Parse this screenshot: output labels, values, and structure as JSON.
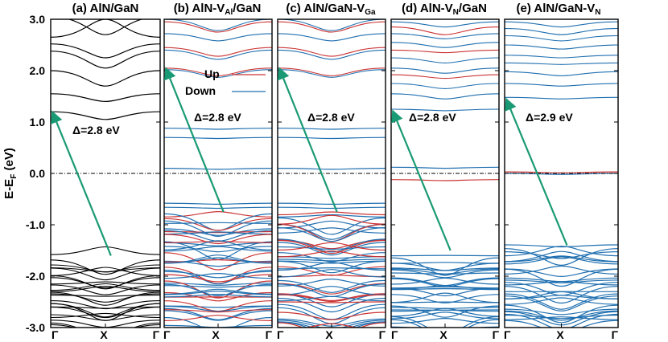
{
  "chart_data": {
    "type": "line",
    "ylabel": "E-E",
    "ylabel_sub": "F",
    "ylabel_tail": " (eV)",
    "ylim": [
      -3.0,
      3.0
    ],
    "yticks": [
      "3.0",
      "2.0",
      "1.0",
      "0.0",
      "-1.0",
      "-2.0",
      "-3.0"
    ],
    "ytick_values": [
      3,
      2,
      1,
      0,
      -1,
      -2,
      -3
    ],
    "xticks": [
      "Γ",
      "X",
      "Γ"
    ],
    "fermi_level": 0.0,
    "legend": {
      "up": "Up",
      "down": "Down",
      "position": "top-left of panel b"
    },
    "colors": {
      "up": "#cc3333",
      "down": "#1f6fb0",
      "pristine": "#000000",
      "arrow": "#1a9a74"
    },
    "panels": [
      {
        "id": "a",
        "title": {
          "pre": "(a) AlN/GaN",
          "sub": "",
          "post": ""
        },
        "gap_label": "Δ=2.8 eV",
        "arrow": {
          "from": [
            0.55,
            -1.6
          ],
          "to": [
            0.0,
            1.2
          ]
        },
        "conduction_bands": [
          {
            "gamma": 3.05,
            "x": 2.7,
            "spin": "pristine"
          },
          {
            "gamma": 2.65,
            "x": 3.0,
            "spin": "pristine"
          },
          {
            "gamma": 2.52,
            "x": 2.25,
            "spin": "pristine"
          },
          {
            "gamma": 2.38,
            "x": 2.05,
            "spin": "pristine"
          },
          {
            "gamma": 2.0,
            "x": 1.7,
            "spin": "pristine"
          },
          {
            "gamma": 1.55,
            "x": 1.4,
            "spin": "pristine"
          },
          {
            "gamma": 1.2,
            "x": 1.05,
            "spin": "pristine"
          }
        ],
        "defect_levels": [],
        "valence": {
          "top": -1.65,
          "bottom": -3.0,
          "count": 26,
          "spin": "pristine"
        }
      },
      {
        "id": "b",
        "title": {
          "pre": "(b) AlN-V",
          "sub": "Al",
          "post": "/GaN"
        },
        "gap_label": "Δ=2.8 eV",
        "arrow": {
          "from": [
            0.55,
            -0.75
          ],
          "to": [
            0.0,
            2.05
          ]
        },
        "conduction_bands": [
          {
            "gamma": 3.0,
            "x": 2.78,
            "spin": "down"
          },
          {
            "gamma": 2.95,
            "x": 2.75,
            "spin": "up"
          },
          {
            "gamma": 2.72,
            "x": 2.58,
            "spin": "down"
          },
          {
            "gamma": 2.45,
            "x": 2.28,
            "spin": "up"
          },
          {
            "gamma": 2.4,
            "x": 2.22,
            "spin": "down"
          },
          {
            "gamma": 2.05,
            "x": 1.9,
            "spin": "up"
          },
          {
            "gamma": 2.02,
            "x": 1.87,
            "spin": "down"
          }
        ],
        "defect_levels": [
          {
            "energy": 0.88,
            "spin": "down"
          },
          {
            "energy": 0.7,
            "spin": "down"
          },
          {
            "energy": 0.1,
            "spin": "down"
          },
          {
            "energy": -0.58,
            "spin": "down"
          },
          {
            "energy": -0.66,
            "spin": "down"
          }
        ],
        "valence": {
          "top": -0.78,
          "bottom": -3.0,
          "count": 46,
          "spin": "mixed"
        }
      },
      {
        "id": "c",
        "title": {
          "pre": "(c) AlN/GaN-V",
          "sub": "Ga",
          "post": ""
        },
        "gap_label": "Δ=2.8 eV",
        "arrow": {
          "from": [
            0.55,
            -0.75
          ],
          "to": [
            0.0,
            2.05
          ]
        },
        "conduction_bands": [
          {
            "gamma": 3.0,
            "x": 2.78,
            "spin": "down"
          },
          {
            "gamma": 2.95,
            "x": 2.75,
            "spin": "up"
          },
          {
            "gamma": 2.72,
            "x": 2.58,
            "spin": "down"
          },
          {
            "gamma": 2.45,
            "x": 2.28,
            "spin": "up"
          },
          {
            "gamma": 2.4,
            "x": 2.22,
            "spin": "down"
          },
          {
            "gamma": 2.05,
            "x": 1.9,
            "spin": "up"
          },
          {
            "gamma": 2.02,
            "x": 1.87,
            "spin": "down"
          }
        ],
        "defect_levels": [
          {
            "energy": 0.88,
            "spin": "down"
          },
          {
            "energy": 0.7,
            "spin": "down"
          },
          {
            "energy": 0.1,
            "spin": "down"
          },
          {
            "energy": -0.58,
            "spin": "down"
          },
          {
            "energy": -0.66,
            "spin": "down"
          }
        ],
        "valence": {
          "top": -0.78,
          "bottom": -3.0,
          "count": 46,
          "spin": "mixed"
        }
      },
      {
        "id": "d",
        "title": {
          "pre": "(d) AlN-V",
          "sub": "N",
          "post": "/GaN"
        },
        "gap_label": "Δ=2.8 eV",
        "arrow": {
          "from": [
            0.55,
            -1.5
          ],
          "to": [
            0.0,
            1.22
          ]
        },
        "conduction_bands": [
          {
            "gamma": 2.95,
            "x": 2.85,
            "spin": "down"
          },
          {
            "gamma": 2.85,
            "x": 2.7,
            "spin": "up"
          },
          {
            "gamma": 2.72,
            "x": 2.62,
            "spin": "down"
          },
          {
            "gamma": 2.55,
            "x": 2.45,
            "spin": "down"
          },
          {
            "gamma": 2.4,
            "x": 2.35,
            "spin": "up"
          },
          {
            "gamma": 2.25,
            "x": 2.15,
            "spin": "down"
          },
          {
            "gamma": 2.05,
            "x": 1.95,
            "spin": "down"
          },
          {
            "gamma": 1.92,
            "x": 1.85,
            "spin": "up"
          },
          {
            "gamma": 1.75,
            "x": 1.65,
            "spin": "down"
          },
          {
            "gamma": 1.55,
            "x": 1.45,
            "spin": "down"
          },
          {
            "gamma": 1.25,
            "x": 1.22,
            "spin": "down"
          }
        ],
        "defect_levels": [
          {
            "energy": 0.12,
            "spin": "down"
          },
          {
            "energy": -0.12,
            "spin": "up"
          }
        ],
        "valence": {
          "top": -1.62,
          "bottom": -3.0,
          "count": 30,
          "spin": "down"
        }
      },
      {
        "id": "e",
        "title": {
          "pre": "(e) AlN/GaN-V",
          "sub": "N",
          "post": ""
        },
        "gap_label": "Δ=2.9 eV",
        "arrow": {
          "from": [
            0.55,
            -1.4
          ],
          "to": [
            0.0,
            1.45
          ]
        },
        "conduction_bands": [
          {
            "gamma": 2.95,
            "x": 2.85,
            "spin": "down"
          },
          {
            "gamma": 2.82,
            "x": 2.7,
            "spin": "down"
          },
          {
            "gamma": 2.68,
            "x": 2.58,
            "spin": "down"
          },
          {
            "gamma": 2.5,
            "x": 2.42,
            "spin": "down"
          },
          {
            "gamma": 2.3,
            "x": 2.25,
            "spin": "down"
          },
          {
            "gamma": 2.15,
            "x": 2.12,
            "spin": "down"
          },
          {
            "gamma": 1.98,
            "x": 1.9,
            "spin": "down"
          },
          {
            "gamma": 1.75,
            "x": 1.7,
            "spin": "down"
          },
          {
            "gamma": 1.48,
            "x": 1.45,
            "spin": "down"
          }
        ],
        "defect_levels": [
          {
            "energy": 0.03,
            "spin": "up"
          },
          {
            "energy": 0.0,
            "spin": "down"
          }
        ],
        "valence": {
          "top": -1.45,
          "bottom": -3.0,
          "count": 30,
          "spin": "down"
        }
      }
    ]
  }
}
